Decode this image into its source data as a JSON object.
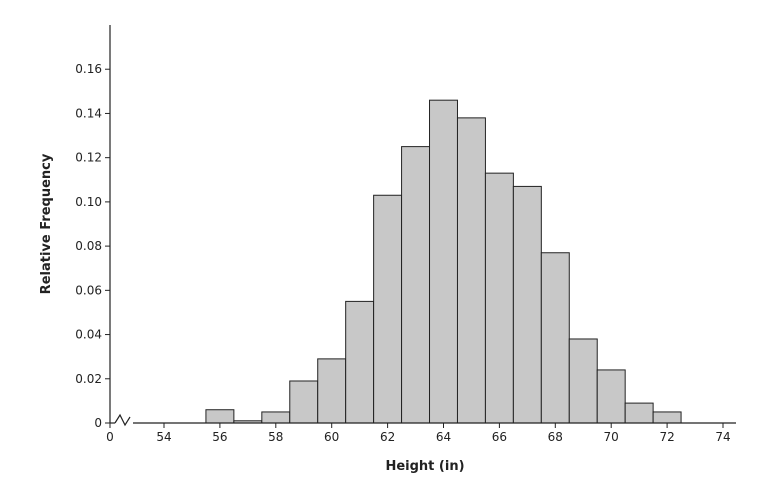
{
  "chart_data": {
    "type": "bar",
    "title": "",
    "xlabel": "Height (in)",
    "ylabel": "Relative Frequency",
    "xlim": [
      53,
      74.5
    ],
    "ylim": [
      0,
      0.18
    ],
    "axis_break": "x-axis between 0 and 54",
    "x_ticks": [
      "0",
      "54",
      "56",
      "58",
      "60",
      "62",
      "64",
      "66",
      "68",
      "70",
      "72",
      "74"
    ],
    "y_ticks": [
      "0",
      "0.02",
      "0.04",
      "0.06",
      "0.08",
      "0.10",
      "0.12",
      "0.14",
      "0.16"
    ],
    "bin_width": 1,
    "bins": [
      {
        "start": 55.5,
        "end": 56.5,
        "value": 0.006
      },
      {
        "start": 56.5,
        "end": 57.5,
        "value": 0.001
      },
      {
        "start": 57.5,
        "end": 58.5,
        "value": 0.005
      },
      {
        "start": 58.5,
        "end": 59.5,
        "value": 0.019
      },
      {
        "start": 59.5,
        "end": 60.5,
        "value": 0.029
      },
      {
        "start": 60.5,
        "end": 61.5,
        "value": 0.055
      },
      {
        "start": 61.5,
        "end": 62.5,
        "value": 0.103
      },
      {
        "start": 62.5,
        "end": 63.5,
        "value": 0.125
      },
      {
        "start": 63.5,
        "end": 64.5,
        "value": 0.146
      },
      {
        "start": 64.5,
        "end": 65.5,
        "value": 0.138
      },
      {
        "start": 65.5,
        "end": 66.5,
        "value": 0.113
      },
      {
        "start": 66.5,
        "end": 67.5,
        "value": 0.107
      },
      {
        "start": 67.5,
        "end": 68.5,
        "value": 0.077
      },
      {
        "start": 68.5,
        "end": 69.5,
        "value": 0.038
      },
      {
        "start": 69.5,
        "end": 70.5,
        "value": 0.024
      },
      {
        "start": 70.5,
        "end": 71.5,
        "value": 0.009
      },
      {
        "start": 71.5,
        "end": 72.5,
        "value": 0.005
      }
    ],
    "grid": false,
    "legend": "none",
    "colors": {
      "bar_fill": "#c8c8c8",
      "bar_stroke": "#222222",
      "axis": "#222222"
    }
  }
}
